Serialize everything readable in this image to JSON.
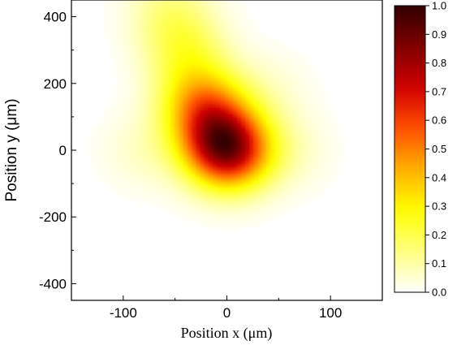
{
  "chart_data": {
    "type": "heatmap",
    "title": "",
    "xlabel": "Position x (μm)",
    "ylabel": "Position y (μm)",
    "xlim": [
      -150,
      150
    ],
    "ylim": [
      -450,
      450
    ],
    "x_ticks": [
      -100,
      0,
      100
    ],
    "x_tick_labels": [
      "-100",
      "0",
      "100"
    ],
    "y_ticks": [
      -400,
      -200,
      0,
      200,
      400
    ],
    "y_tick_labels": [
      "-400",
      "-200",
      "0",
      "200",
      "400"
    ],
    "colorbar": {
      "range": [
        0.0,
        1.0
      ],
      "ticks": [
        0.0,
        0.1,
        0.2,
        0.3,
        0.4,
        0.5,
        0.6,
        0.7,
        0.8,
        0.9,
        1.0
      ],
      "tick_labels": [
        "0.0",
        "0.1",
        "0.2",
        "0.3",
        "0.4",
        "0.5",
        "0.6",
        "0.7",
        "0.8",
        "0.9",
        "1.0"
      ],
      "colormap": [
        "#ffffff",
        "#ffff80",
        "#ffff00",
        "#ffb000",
        "#ff5000",
        "#d00000",
        "#800000",
        "#300000"
      ],
      "placement": "right"
    },
    "intensity_peaks": [
      {
        "x": 2,
        "y": -5,
        "amplitude": 0.55
      },
      {
        "x": -25,
        "y": 150,
        "amplitude": 0.28
      },
      {
        "x": -10,
        "y": 60,
        "amplitude": 0.28
      },
      {
        "x": -40,
        "y": 300,
        "amplitude": 0.14
      },
      {
        "x": -55,
        "y": 420,
        "amplitude": 0.1
      },
      {
        "x": -80,
        "y": 0,
        "amplitude": 0.05
      },
      {
        "x": 60,
        "y": 0,
        "amplitude": 0.05
      },
      {
        "x": 40,
        "y": 180,
        "amplitude": 0.04
      }
    ],
    "grid": false
  }
}
